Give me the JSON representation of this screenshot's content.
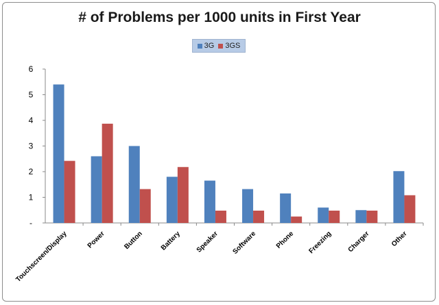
{
  "chart_data": {
    "type": "bar",
    "title": "# of Problems per 1000 units in First Year",
    "xlabel": "",
    "ylabel": "",
    "ylim": [
      0,
      6
    ],
    "yticks": [
      "-",
      "1",
      "2",
      "3",
      "4",
      "5",
      "6"
    ],
    "grid": false,
    "legend_position": "top",
    "categories": [
      "Touchscreen/Display",
      "Power",
      "Button",
      "Battery",
      "Speaker",
      "Software",
      "Phone",
      "Freezing",
      "Charger",
      "Other"
    ],
    "series": [
      {
        "name": "3G",
        "color": "#4f81bd",
        "values": [
          5.4,
          2.6,
          3.0,
          1.8,
          1.65,
          1.32,
          1.15,
          0.6,
          0.5,
          2.02
        ]
      },
      {
        "name": "3GS",
        "color": "#c0504d",
        "values": [
          2.42,
          3.87,
          1.32,
          2.18,
          0.48,
          0.48,
          0.25,
          0.48,
          0.48,
          1.08
        ]
      }
    ]
  }
}
